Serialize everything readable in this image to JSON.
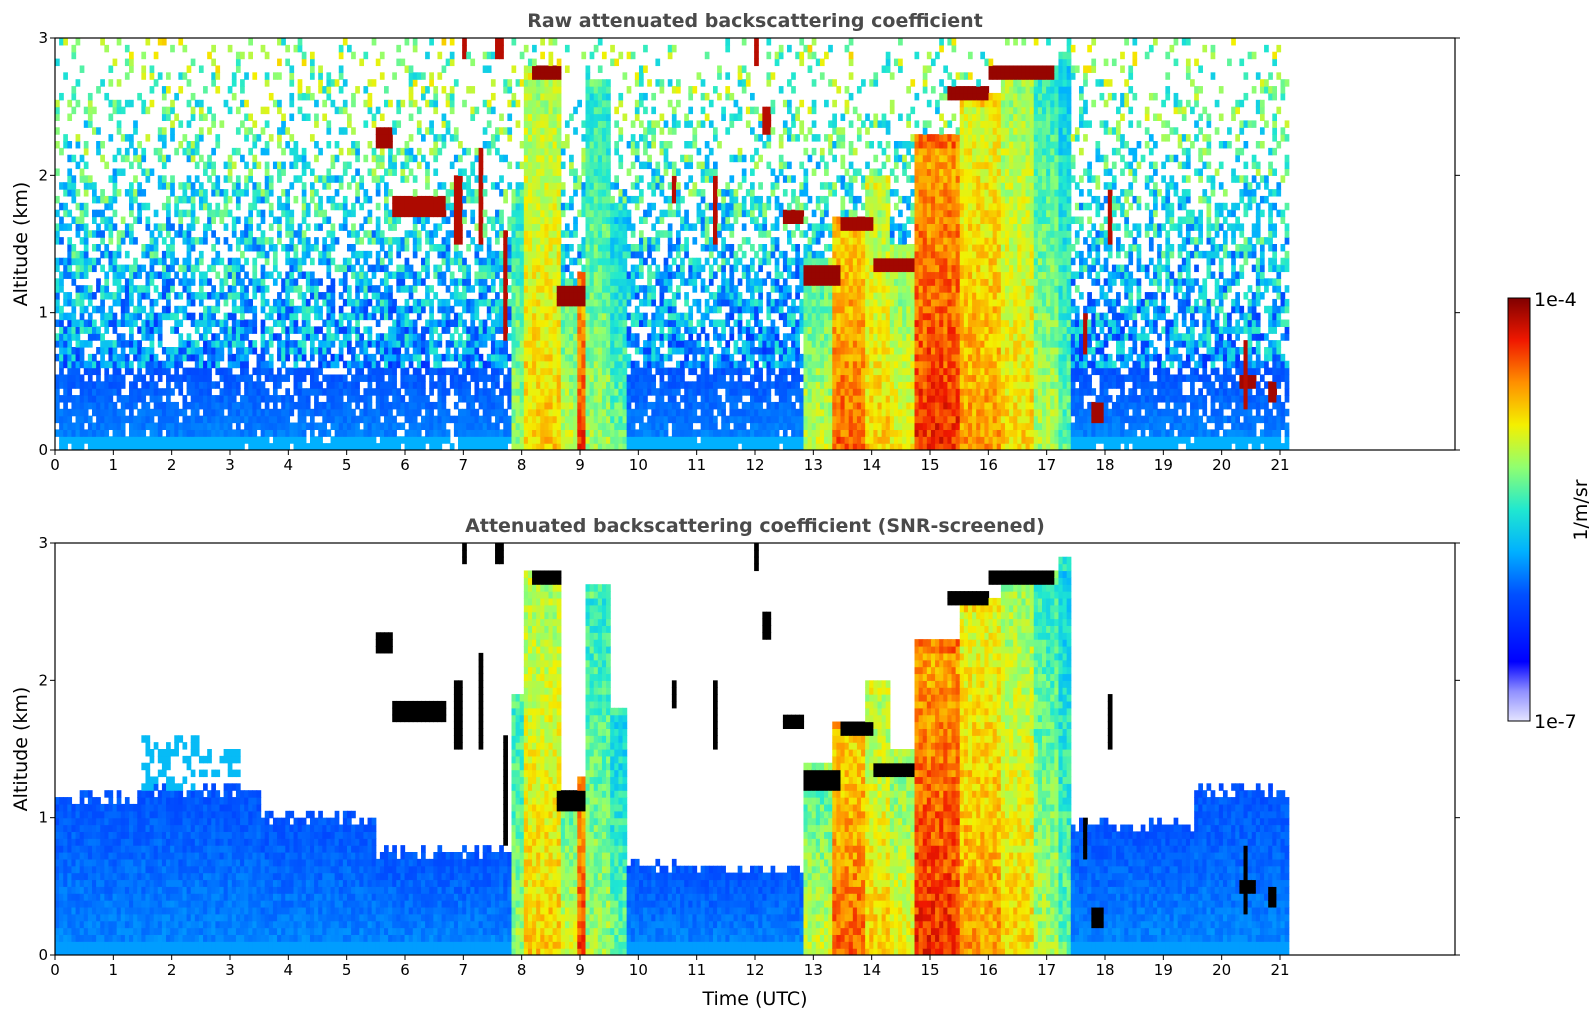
{
  "chart_data": [
    {
      "type": "heatmap",
      "title": "Raw attenuated backscattering coefficient",
      "xlabel": "",
      "ylabel": "Altitude (km)",
      "xlim": [
        0,
        24
      ],
      "ylim": [
        0,
        3
      ],
      "x_ticks": [
        "0",
        "1",
        "2",
        "3",
        "4",
        "5",
        "6",
        "7",
        "8",
        "9",
        "10",
        "11",
        "12",
        "13",
        "14",
        "15",
        "16",
        "17",
        "18",
        "19",
        "20",
        "21"
      ],
      "y_ticks": [
        "0",
        "1",
        "2",
        "3"
      ],
      "data_end_time": 21.15,
      "screened": false
    },
    {
      "type": "heatmap",
      "title": "Attenuated backscattering coefficient (SNR-screened)",
      "xlabel": "Time (UTC)",
      "ylabel": "Altitude (km)",
      "xlim": [
        0,
        24
      ],
      "ylim": [
        0,
        3
      ],
      "x_ticks": [
        "0",
        "1",
        "2",
        "3",
        "4",
        "5",
        "6",
        "7",
        "8",
        "9",
        "10",
        "11",
        "12",
        "13",
        "14",
        "15",
        "16",
        "17",
        "18",
        "19",
        "20",
        "21"
      ],
      "y_ticks": [
        "0",
        "1",
        "2",
        "3"
      ],
      "data_end_time": 21.15,
      "screened": true
    }
  ],
  "colorbar": {
    "label": "1/m/sr",
    "max_label": "1e-4",
    "min_label": "1e-7",
    "scale": "log",
    "colormap": "jet",
    "colors": [
      "#e0e0ff",
      "#a0a0ff",
      "#0000ff",
      "#0080ff",
      "#00e0ff",
      "#80ff80",
      "#ffff00",
      "#ff8000",
      "#ff0000",
      "#800000"
    ]
  }
}
